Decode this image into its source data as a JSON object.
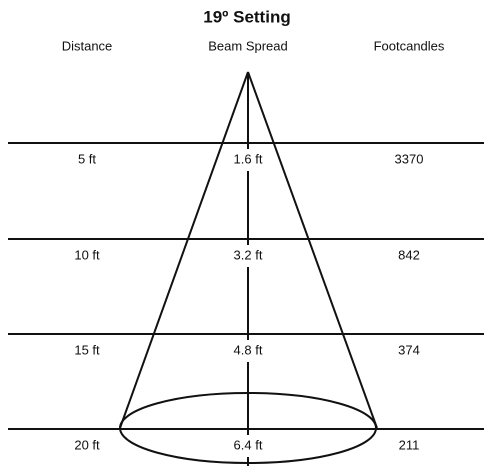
{
  "title": "19º Setting",
  "headers": [
    "Distance",
    "Beam Spread",
    "Footcandles"
  ],
  "rows": [
    [
      "5 ft",
      "1.6 ft",
      "3370"
    ],
    [
      "10 ft",
      "3.2 ft",
      "842"
    ],
    [
      "15 ft",
      "4.8 ft",
      "374"
    ],
    [
      "20 ft",
      "6.4 ft",
      "211"
    ]
  ]
}
